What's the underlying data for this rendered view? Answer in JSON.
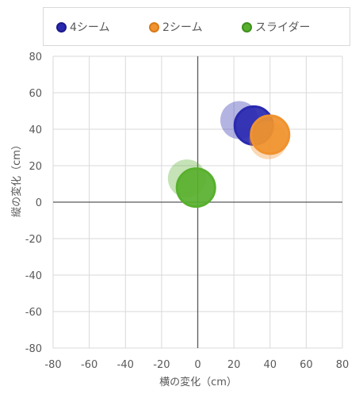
{
  "chart_data": {
    "type": "scatter",
    "xlabel": "横の変化（cm）",
    "ylabel": "縦の変化（cm）",
    "xlim": [
      -80,
      80
    ],
    "ylim": [
      -80,
      80
    ],
    "xticks": [
      -80,
      -60,
      -40,
      -20,
      0,
      20,
      40,
      60,
      80
    ],
    "yticks": [
      -80,
      -60,
      -40,
      -20,
      0,
      20,
      40,
      60,
      80
    ],
    "grid": true,
    "legend_position": "top",
    "series": [
      {
        "name": "4シーム",
        "color": "#2929b0",
        "points": [
          {
            "x": 23,
            "y": 45,
            "opacity": 0.35
          },
          {
            "x": 31,
            "y": 42,
            "opacity": 1.0
          }
        ]
      },
      {
        "name": "2シーム",
        "color": "#f0922e",
        "points": [
          {
            "x": 39,
            "y": 34,
            "opacity": 0.35
          },
          {
            "x": 40,
            "y": 37,
            "opacity": 1.0
          }
        ]
      },
      {
        "name": "スライダー",
        "color": "#58b02e",
        "points": [
          {
            "x": -6,
            "y": 13,
            "opacity": 0.35
          },
          {
            "x": -1,
            "y": 8,
            "opacity": 1.0
          }
        ]
      }
    ]
  }
}
